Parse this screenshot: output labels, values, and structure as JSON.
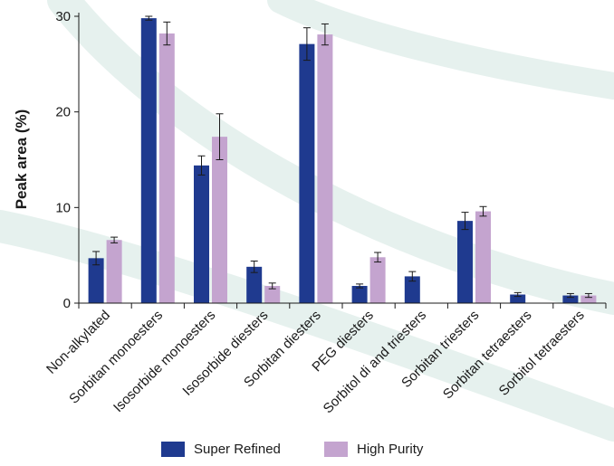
{
  "chart_data": {
    "type": "bar",
    "title": "",
    "xlabel": "",
    "ylabel": "Peak area (%)",
    "ylim": [
      0,
      30
    ],
    "yticks": [
      0,
      10,
      20,
      30
    ],
    "grid": false,
    "legend_position": "bottom",
    "categories": [
      "Non-alkylated",
      "Sorbitan monoesters",
      "Isosorbide monoesters",
      "Isosorbide diesters",
      "Sorbitan diesters",
      "PEG diesters",
      "Sorbitol di and triesters",
      "Sorbitan triesters",
      "Sorbitan  tetraesters",
      "Sorbitol tetraesters"
    ],
    "series": [
      {
        "name": "Super Refined",
        "color": "#1f3a8f",
        "values": [
          4.7,
          29.8,
          14.4,
          3.8,
          27.1,
          1.8,
          2.8,
          8.6,
          0.9,
          0.8
        ],
        "errors": [
          0.7,
          0.2,
          1.0,
          0.6,
          1.7,
          0.2,
          0.5,
          0.9,
          0.2,
          0.2
        ]
      },
      {
        "name": "High Purity",
        "color": "#c4a4cf",
        "values": [
          6.6,
          28.2,
          17.4,
          1.8,
          28.1,
          4.8,
          null,
          9.6,
          null,
          0.8
        ],
        "errors": [
          0.3,
          1.2,
          2.4,
          0.3,
          1.1,
          0.5,
          null,
          0.5,
          null,
          0.2
        ]
      }
    ]
  }
}
